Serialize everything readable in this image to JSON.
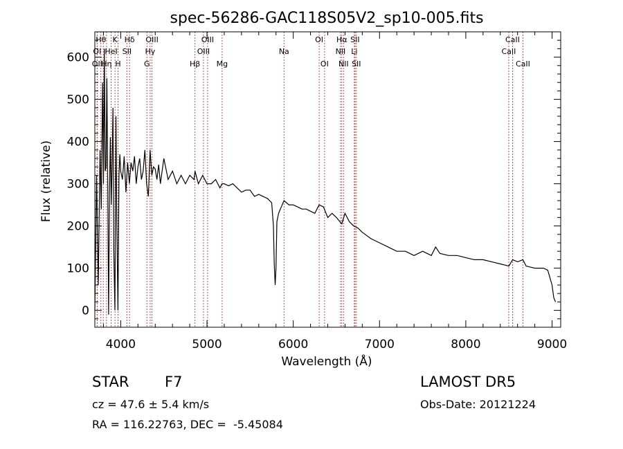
{
  "chart_data": {
    "type": "line",
    "title": "spec-56286-GAC118S05V2_sp10-005.fits",
    "xlabel": "Wavelength (Å)",
    "ylabel": "Flux (relative)",
    "xlim": [
      3700,
      9100
    ],
    "ylim": [
      -40,
      660
    ],
    "xticks": [
      4000,
      5000,
      6000,
      7000,
      8000,
      9000
    ],
    "yticks": [
      0,
      100,
      200,
      300,
      400,
      500,
      600
    ],
    "grid": false,
    "line_color": "#000000",
    "marker_color": "#cc3333",
    "series": [
      {
        "x": [
          3700,
          3720,
          3740,
          3760,
          3775,
          3790,
          3800,
          3810,
          3820,
          3830,
          3840,
          3850,
          3860,
          3870,
          3880,
          3890,
          3900,
          3910,
          3920,
          3933,
          3945,
          3955,
          3968,
          3980,
          3990,
          4000,
          4020,
          4040,
          4060,
          4080,
          4100,
          4120,
          4140,
          4160,
          4180,
          4200,
          4220,
          4240,
          4260,
          4280,
          4300,
          4320,
          4340,
          4360,
          4380,
          4400,
          4420,
          4440,
          4460,
          4480,
          4500,
          4550,
          4600,
          4650,
          4700,
          4750,
          4800,
          4850,
          4861,
          4900,
          4950,
          5000,
          5050,
          5100,
          5150,
          5175,
          5200,
          5250,
          5300,
          5350,
          5400,
          5450,
          5500,
          5550,
          5600,
          5650,
          5700,
          5750,
          5770,
          5780,
          5790,
          5800,
          5810,
          5830,
          5850,
          5893,
          5950,
          6000,
          6050,
          6100,
          6150,
          6200,
          6250,
          6300,
          6350,
          6400,
          6450,
          6500,
          6563,
          6600,
          6650,
          6700,
          6750,
          6800,
          6900,
          7000,
          7100,
          7200,
          7300,
          7400,
          7500,
          7600,
          7650,
          7700,
          7800,
          7900,
          8000,
          8100,
          8200,
          8300,
          8400,
          8500,
          8542,
          8600,
          8662,
          8700,
          8800,
          8900,
          8950,
          9000,
          9020,
          9040
        ],
        "y": [
          0,
          320,
          60,
          380,
          240,
          540,
          300,
          620,
          330,
          340,
          550,
          290,
          -10,
          280,
          410,
          250,
          340,
          480,
          140,
          0,
          460,
          200,
          0,
          320,
          370,
          330,
          310,
          365,
          280,
          350,
          300,
          350,
          330,
          365,
          300,
          340,
          360,
          310,
          330,
          380,
          300,
          270,
          380,
          320,
          340,
          335,
          310,
          345,
          300,
          330,
          360,
          310,
          330,
          300,
          320,
          300,
          320,
          310,
          330,
          300,
          320,
          300,
          300,
          310,
          290,
          300,
          300,
          295,
          300,
          290,
          280,
          285,
          285,
          270,
          275,
          270,
          265,
          255,
          200,
          110,
          60,
          100,
          210,
          230,
          240,
          260,
          250,
          250,
          245,
          240,
          240,
          235,
          230,
          250,
          245,
          220,
          230,
          220,
          205,
          230,
          210,
          200,
          195,
          185,
          170,
          160,
          150,
          140,
          140,
          130,
          140,
          130,
          150,
          135,
          130,
          130,
          125,
          120,
          120,
          115,
          110,
          105,
          120,
          115,
          120,
          105,
          100,
          100,
          95,
          60,
          30,
          20
        ]
      }
    ],
    "lines": [
      {
        "wave": 3770,
        "label": "Hθ",
        "row": 1
      },
      {
        "wave": 3798,
        "label": "",
        "row": 1
      },
      {
        "wave": 3835,
        "label": "Hη",
        "row": 3
      },
      {
        "wave": 3727,
        "label": "OII",
        "row": 3
      },
      {
        "wave": 3727,
        "label": "OI",
        "row": 2
      },
      {
        "wave": 3889,
        "label": "HeI",
        "row": 2
      },
      {
        "wave": 3934,
        "label": "K",
        "row": 1
      },
      {
        "wave": 3969,
        "label": "H",
        "row": 3
      },
      {
        "wave": 4072,
        "label": "SII",
        "row": 2
      },
      {
        "wave": 4102,
        "label": "Hδ",
        "row": 1
      },
      {
        "wave": 4304,
        "label": "G",
        "row": 3
      },
      {
        "wave": 4341,
        "label": "Hγ",
        "row": 2
      },
      {
        "wave": 4363,
        "label": "OIII",
        "row": 1
      },
      {
        "wave": 4861,
        "label": "Hβ",
        "row": 3
      },
      {
        "wave": 4959,
        "label": "OIII",
        "row": 2
      },
      {
        "wave": 5007,
        "label": "OIII",
        "row": 1
      },
      {
        "wave": 5175,
        "label": "Mg",
        "row": 3
      },
      {
        "wave": 5893,
        "label": "Na",
        "row": 2
      },
      {
        "wave": 6300,
        "label": "OI",
        "row": 1
      },
      {
        "wave": 6363,
        "label": "OI",
        "row": 3
      },
      {
        "wave": 6548,
        "label": "NII",
        "row": 2
      },
      {
        "wave": 6563,
        "label": "Hα",
        "row": 1
      },
      {
        "wave": 6583,
        "label": "NII",
        "row": 3
      },
      {
        "wave": 6708,
        "label": "Li",
        "row": 2
      },
      {
        "wave": 6716,
        "label": "SII",
        "row": 1
      },
      {
        "wave": 6731,
        "label": "SII",
        "row": 3
      },
      {
        "wave": 8498,
        "label": "CaII",
        "row": 2
      },
      {
        "wave": 8542,
        "label": "CaII",
        "row": 1
      },
      {
        "wave": 8662,
        "label": "CaII",
        "row": 3
      }
    ]
  },
  "info": {
    "obj_class": "STAR",
    "obj_subclass": "F7",
    "survey": "LAMOST DR5",
    "cz": "cz = 47.6 ± 5.4 km/s",
    "obs_date": "Obs-Date: 20121224",
    "radec": "RA = 116.22763, DEC =  -5.45084"
  }
}
